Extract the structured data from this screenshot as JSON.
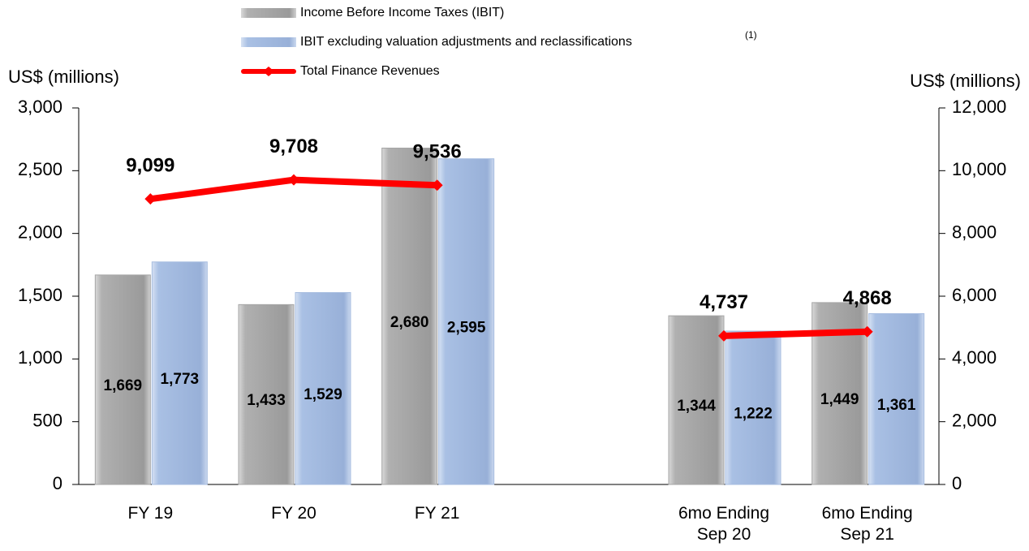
{
  "chart_data": {
    "type": "bar",
    "categories": [
      "FY 19",
      "FY 20",
      "FY 21",
      null,
      "6mo Ending\nSep 20",
      "6mo Ending\nSep 21"
    ],
    "series": [
      {
        "name": "Income Before Income Taxes (IBIT)",
        "color": "#a6a6a6",
        "type": "bar",
        "values": [
          1669,
          1433,
          2680,
          null,
          1344,
          1449
        ],
        "value_labels": [
          "1,669",
          "1,433",
          "2,680",
          null,
          "1,344",
          "1,449"
        ]
      },
      {
        "name": "IBIT excluding valuation adjustments and reclassifications",
        "color": "#a7bde0",
        "type": "bar",
        "values": [
          1773,
          1529,
          2595,
          null,
          1222,
          1361
        ],
        "value_labels": [
          "1,773",
          "1,529",
          "2,595",
          null,
          "1,222",
          "1,361"
        ]
      },
      {
        "name": "Total Finance Revenues",
        "color": "#ff0000",
        "type": "line",
        "axis": "y2",
        "values": [
          9099,
          9708,
          9536,
          null,
          4737,
          4868
        ],
        "value_labels": [
          "9,099",
          "9,708",
          "9,536",
          null,
          "4,737",
          "4,868"
        ]
      }
    ],
    "legend_annotation": "(1)",
    "ylabel": "US$ (millions)",
    "y2label": "US$ (millions)",
    "ylim": [
      0,
      3000
    ],
    "yticks": [
      0,
      500,
      {
        "value": 1000,
        "label": "1,000"
      },
      {
        "value": 1500,
        "label": "1,500"
      },
      {
        "value": 2000,
        "label": "2,000"
      },
      {
        "value": 2500,
        "label": "2,500"
      },
      {
        "value": 3000,
        "label": "3,000"
      }
    ],
    "y2lim": [
      0,
      12000
    ],
    "y2ticks": [
      0,
      {
        "value": 2000,
        "label": "2,000"
      },
      {
        "value": 4000,
        "label": "4,000"
      },
      {
        "value": 6000,
        "label": "6,000"
      },
      {
        "value": 8000,
        "label": "8,000"
      },
      {
        "value": 10000,
        "label": "10,000"
      },
      {
        "value": 12000,
        "label": "12,000"
      }
    ],
    "grid": false,
    "legend": "top"
  }
}
